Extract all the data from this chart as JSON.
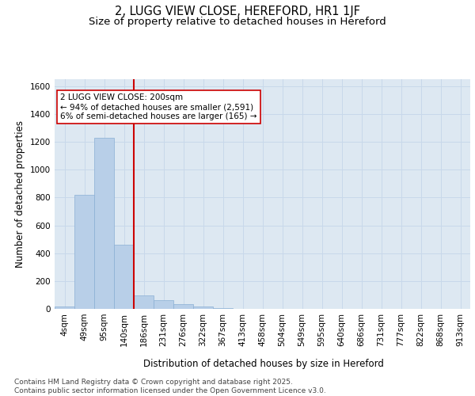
{
  "title_line1": "2, LUGG VIEW CLOSE, HEREFORD, HR1 1JF",
  "title_line2": "Size of property relative to detached houses in Hereford",
  "xlabel": "Distribution of detached houses by size in Hereford",
  "ylabel": "Number of detached properties",
  "categories": [
    "4sqm",
    "49sqm",
    "95sqm",
    "140sqm",
    "186sqm",
    "231sqm",
    "276sqm",
    "322sqm",
    "367sqm",
    "413sqm",
    "458sqm",
    "504sqm",
    "549sqm",
    "595sqm",
    "640sqm",
    "686sqm",
    "731sqm",
    "777sqm",
    "822sqm",
    "868sqm",
    "913sqm"
  ],
  "values": [
    18,
    820,
    1230,
    460,
    95,
    60,
    35,
    18,
    8,
    0,
    0,
    0,
    0,
    0,
    0,
    0,
    0,
    0,
    0,
    0,
    0
  ],
  "bar_color": "#b8cfe8",
  "bar_edge_color": "#8aafd4",
  "grid_color": "#c8d8ea",
  "background_color": "#dde8f2",
  "vline_x": 4,
  "vline_color": "#cc0000",
  "annotation_text": "2 LUGG VIEW CLOSE: 200sqm\n← 94% of detached houses are smaller (2,591)\n6% of semi-detached houses are larger (165) →",
  "annotation_box_color": "#cc0000",
  "ylim": [
    0,
    1650
  ],
  "yticks": [
    0,
    200,
    400,
    600,
    800,
    1000,
    1200,
    1400,
    1600
  ],
  "footnote": "Contains HM Land Registry data © Crown copyright and database right 2025.\nContains public sector information licensed under the Open Government Licence v3.0.",
  "title_fontsize": 10.5,
  "subtitle_fontsize": 9.5,
  "axis_fontsize": 8.5,
  "tick_fontsize": 7.5,
  "annot_fontsize": 7.5,
  "footnote_fontsize": 6.5
}
